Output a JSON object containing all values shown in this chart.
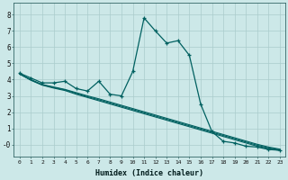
{
  "title": "",
  "xlabel": "Humidex (Indice chaleur)",
  "ylabel": "",
  "background_color": "#cce8e8",
  "grid_color": "#aacccc",
  "line_color": "#006060",
  "xlim": [
    -0.5,
    23.5
  ],
  "ylim": [
    -0.75,
    8.75
  ],
  "xticks": [
    0,
    1,
    2,
    3,
    4,
    5,
    6,
    7,
    8,
    9,
    10,
    11,
    12,
    13,
    14,
    15,
    16,
    17,
    18,
    19,
    20,
    21,
    22,
    23
  ],
  "yticks": [
    0,
    1,
    2,
    3,
    4,
    5,
    6,
    7,
    8
  ],
  "series": [
    [
      4.4,
      4.1,
      3.8,
      3.8,
      3.9,
      3.45,
      3.3,
      3.9,
      3.1,
      3.0,
      4.5,
      7.8,
      7.0,
      6.25,
      6.4,
      5.5,
      2.5,
      0.8,
      0.2,
      0.1,
      -0.1,
      -0.15,
      -0.3,
      -0.35
    ],
    [
      4.35,
      4.0,
      3.7,
      3.55,
      3.4,
      3.2,
      3.0,
      2.82,
      2.62,
      2.42,
      2.22,
      2.02,
      1.82,
      1.62,
      1.42,
      1.22,
      1.02,
      0.82,
      0.62,
      0.42,
      0.22,
      0.02,
      -0.15,
      -0.28
    ],
    [
      4.35,
      3.98,
      3.68,
      3.52,
      3.37,
      3.15,
      2.95,
      2.76,
      2.56,
      2.36,
      2.16,
      1.96,
      1.76,
      1.56,
      1.36,
      1.16,
      0.96,
      0.76,
      0.56,
      0.36,
      0.16,
      -0.04,
      -0.2,
      -0.32
    ],
    [
      4.35,
      3.96,
      3.66,
      3.48,
      3.33,
      3.1,
      2.9,
      2.7,
      2.5,
      2.3,
      2.1,
      1.9,
      1.7,
      1.5,
      1.3,
      1.1,
      0.9,
      0.7,
      0.5,
      0.3,
      0.1,
      -0.1,
      -0.25,
      -0.36
    ]
  ]
}
